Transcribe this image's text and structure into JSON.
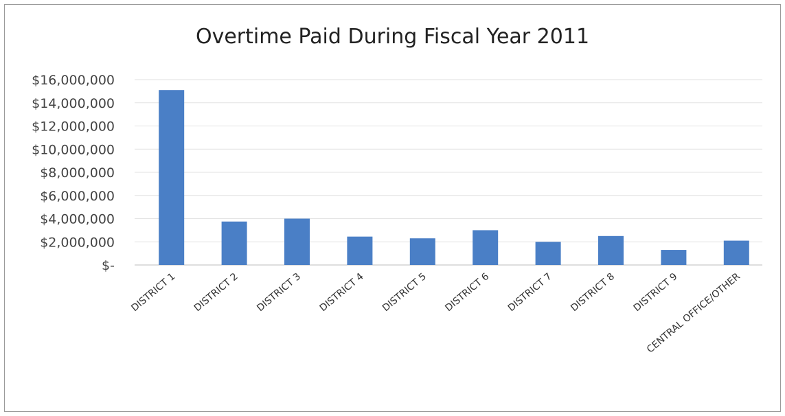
{
  "chart_data": {
    "type": "bar",
    "title": "Overtime Paid During Fiscal Year 2011",
    "categories": [
      "DISTRICT 1",
      "DISTRICT 2",
      "DISTRICT 3",
      "DISTRICT 4",
      "DISTRICT 5",
      "DISTRICT 6",
      "DISTRICT 7",
      "DISTRICT 8",
      "DISTRICT 9",
      "CENTRAL OFFICE/OTHER"
    ],
    "values": [
      15100000,
      3750000,
      4000000,
      2450000,
      2300000,
      3000000,
      2000000,
      2500000,
      1300000,
      2100000
    ],
    "yticks": [
      "$-",
      "$2,000,000",
      "$4,000,000",
      "$6,000,000",
      "$8,000,000",
      "$10,000,000",
      "$12,000,000",
      "$14,000,000",
      "$16,000,000"
    ],
    "ylim": [
      0,
      16000000
    ],
    "grid": true,
    "bar_color": "#4a7fc6"
  }
}
